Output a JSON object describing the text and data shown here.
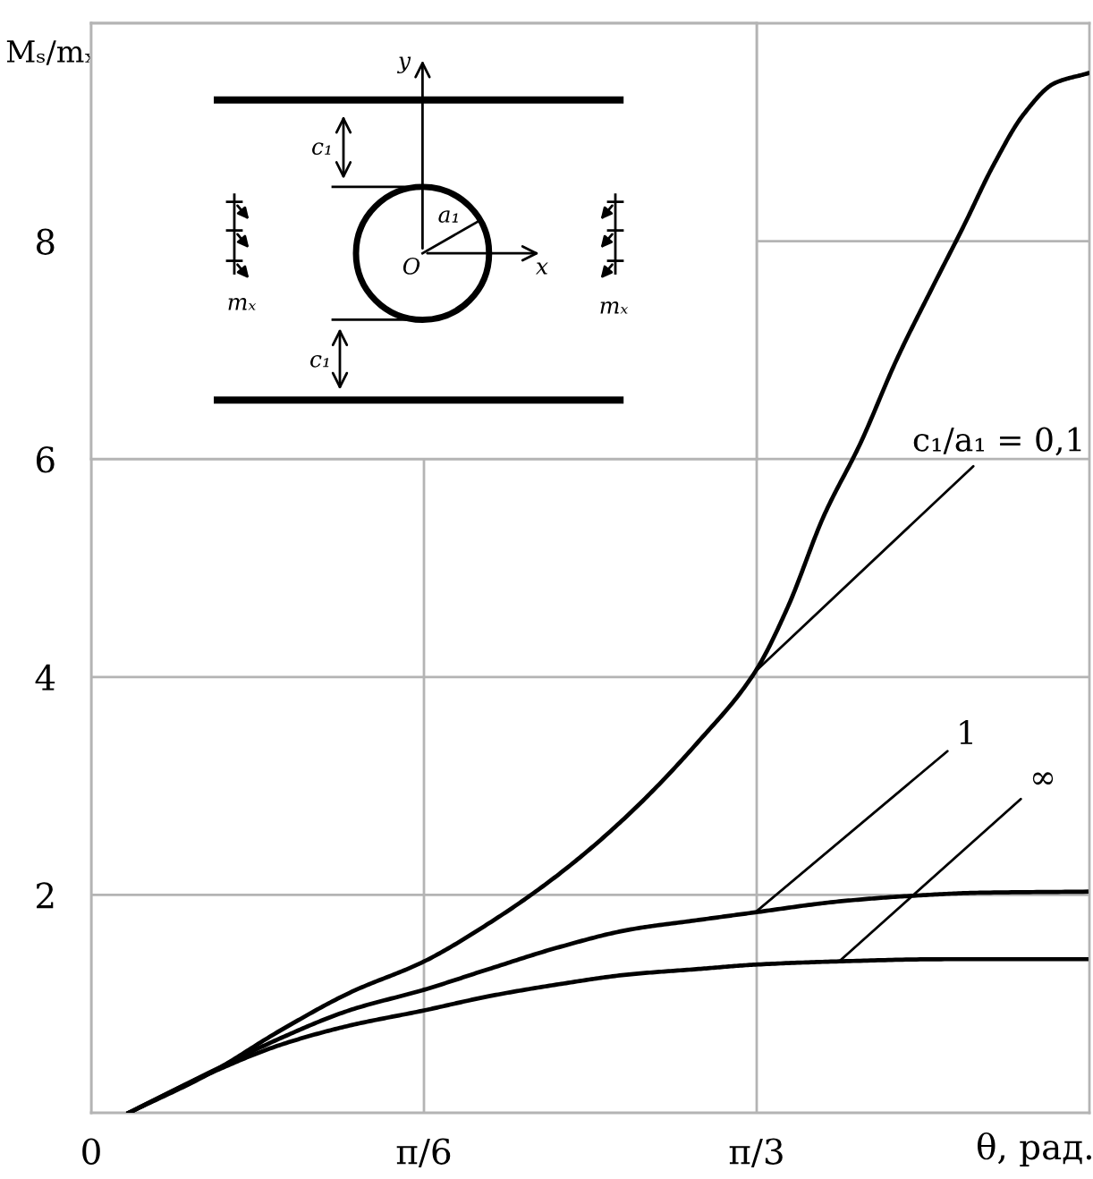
{
  "chart_data": {
    "type": "line",
    "xlabel": "θ, рад.",
    "ylabel": "Mₛ/mₓ",
    "xlim": [
      0,
      1.5708
    ],
    "ylim": [
      0,
      10
    ],
    "xticks": [
      {
        "value": 0,
        "label": "0"
      },
      {
        "value": 0.5236,
        "label": "π/6"
      },
      {
        "value": 1.0472,
        "label": "π/3"
      }
    ],
    "yticks": [
      2,
      4,
      6,
      8
    ],
    "grid": true,
    "line_style": "solid",
    "series": [
      {
        "name": "c₁/a₁ = 0,1",
        "color": "#000000",
        "x": [
          0.059,
          0.186,
          0.296,
          0.406,
          0.524,
          0.626,
          0.736,
          0.846,
          0.956,
          1.045,
          1.096,
          1.153,
          1.21,
          1.268,
          1.325,
          1.373,
          1.42,
          1.468,
          1.516,
          1.568
        ],
        "values": [
          0,
          0.36,
          0.75,
          1.1,
          1.39,
          1.74,
          2.19,
          2.74,
          3.41,
          4.05,
          4.64,
          5.48,
          6.14,
          6.92,
          7.59,
          8.14,
          8.7,
          9.17,
          9.45,
          9.54
        ]
      },
      {
        "name": "1",
        "color": "#000000",
        "x": [
          0.059,
          0.186,
          0.296,
          0.406,
          0.524,
          0.626,
          0.736,
          0.846,
          0.956,
          1.045,
          1.177,
          1.287,
          1.398,
          1.566
        ],
        "values": [
          0,
          0.37,
          0.68,
          0.94,
          1.13,
          1.32,
          1.52,
          1.68,
          1.77,
          1.84,
          1.94,
          1.99,
          2.02,
          2.03
        ]
      },
      {
        "name": "∞",
        "color": "#000000",
        "x": [
          0.059,
          0.186,
          0.296,
          0.406,
          0.524,
          0.626,
          0.736,
          0.846,
          0.956,
          1.045,
          1.177,
          1.343,
          1.566
        ],
        "values": [
          0,
          0.36,
          0.62,
          0.8,
          0.94,
          1.07,
          1.18,
          1.27,
          1.32,
          1.36,
          1.39,
          1.41,
          1.41
        ]
      }
    ],
    "annotations": [
      "y",
      "x",
      "O",
      "a₁",
      "c₁",
      "c₁",
      "mₓ",
      "mₓ"
    ]
  }
}
